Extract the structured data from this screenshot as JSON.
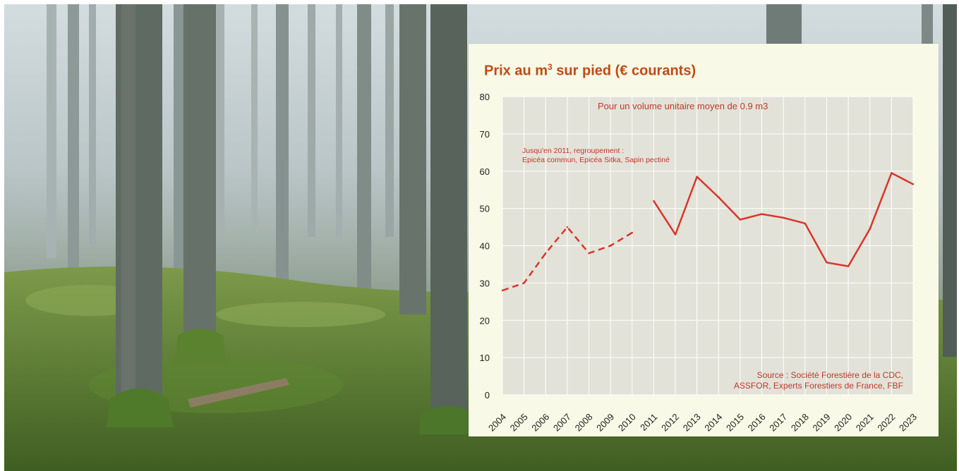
{
  "chart_data": {
    "type": "line",
    "title": "Prix au m",
    "title_superscript": "3",
    "title_rest": " sur pied (€ courants)",
    "subtitle": "Pour un volume unitaire moyen de 0.9 m3",
    "annotation": [
      "Jusqu'en 2011, regroupement :",
      "Epicéa commun, Epicéa Sitka, Sapin pectiné"
    ],
    "source": [
      "Source : Société Forestière de la CDC,",
      "ASSFOR, Experts Forestiers de France, FBF"
    ],
    "ylim": [
      0,
      80
    ],
    "yticks": [
      0,
      10,
      20,
      30,
      40,
      50,
      60,
      70,
      80
    ],
    "xticks": [
      "2004",
      "2005",
      "2006",
      "2007",
      "2008",
      "2009",
      "2010",
      "2011",
      "2012",
      "2013",
      "2014",
      "2015",
      "2016",
      "2017",
      "2018",
      "2019",
      "2020",
      "2021",
      "2022",
      "2023"
    ],
    "series": [
      {
        "style": "dashed",
        "x": [
          2004,
          2005,
          2006,
          2007,
          2008,
          2009,
          2010
        ],
        "y": [
          28,
          30,
          38,
          45,
          38,
          40,
          43.5
        ]
      },
      {
        "style": "solid",
        "x": [
          2011,
          2012,
          2013,
          2014,
          2015,
          2016,
          2017,
          2018,
          2019,
          2020,
          2021,
          2022,
          2023
        ],
        "y": [
          52,
          43,
          58.5,
          53,
          47,
          48.5,
          47.5,
          46,
          35.5,
          34.5,
          44.5,
          59.5,
          56.5
        ]
      }
    ],
    "grid": true,
    "colors": {
      "line": "#d9352b",
      "title": "#bf4a17",
      "plot_bg": "#e2e2d8",
      "grid": "#ffffff"
    }
  }
}
